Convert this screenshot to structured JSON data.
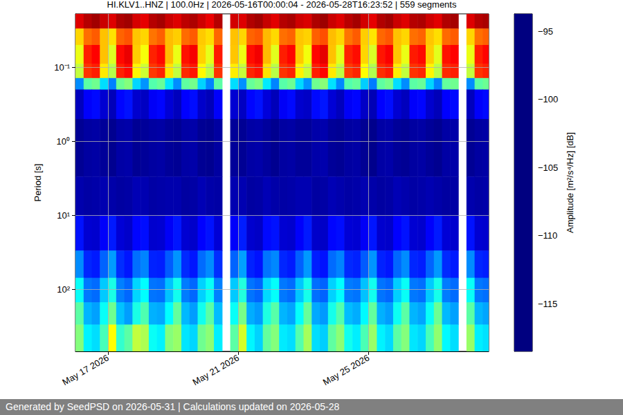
{
  "chart_data": {
    "type": "heatmap",
    "title": "HI.KLV1..HNZ | 100.0Hz | 2026-05-16T00:00:04 - 2026-05-28T16:23:52 | 559 segments",
    "y_label": "Period [s]",
    "colorbar_label": "Amplitude [m²/s⁴/Hz] [dB]",
    "footer": "Generated by SeedPSD on 2026-05-31 | Calculations updated on 2026-05-28",
    "log": "y",
    "grid": true,
    "xlim": [
      "2026-05-16T00:00:04",
      "2026-05-28T16:23:52"
    ],
    "xticks": [
      {
        "value": "2026-05-17T00:00:00",
        "label": "May 17 2026"
      },
      {
        "value": "2026-05-21T00:00:00",
        "label": "May 21 2026"
      },
      {
        "value": "2026-05-25T00:00:00",
        "label": "May 25 2026"
      }
    ],
    "ylim": [
      0.019,
      690
    ],
    "yticks": [
      {
        "value": 0.1,
        "label": "10⁻¹"
      },
      {
        "value": 1,
        "label": "10⁰"
      },
      {
        "value": 10,
        "label": "10¹"
      },
      {
        "value": 100,
        "label": "10²"
      }
    ],
    "colorbar_range": [
      -118.5,
      -93.7
    ],
    "colorbar_ticks": [
      {
        "value": -95,
        "label": "−95"
      },
      {
        "value": -100,
        "label": "−100"
      },
      {
        "value": -105,
        "label": "−105"
      },
      {
        "value": -110,
        "label": "−110"
      },
      {
        "value": -115,
        "label": "−115"
      }
    ],
    "x_edges": [
      "2026-05-16T00:00",
      "2026-05-16T06:00",
      "2026-05-16T12:00",
      "2026-05-16T18:00",
      "2026-05-17T00:00",
      "2026-05-17T06:00",
      "2026-05-17T12:00",
      "2026-05-17T18:00",
      "2026-05-18T00:00",
      "2026-05-18T06:00",
      "2026-05-18T12:00",
      "2026-05-18T18:00",
      "2026-05-19T00:00",
      "2026-05-19T06:00",
      "2026-05-19T12:00",
      "2026-05-19T18:00",
      "2026-05-20T00:00",
      "2026-05-20T06:00",
      "2026-05-20T12:00",
      "2026-05-20T18:00",
      "2026-05-21T00:00",
      "2026-05-21T06:00",
      "2026-05-21T12:00",
      "2026-05-21T18:00",
      "2026-05-22T00:00",
      "2026-05-22T06:00",
      "2026-05-22T12:00",
      "2026-05-22T18:00",
      "2026-05-23T00:00",
      "2026-05-23T06:00",
      "2026-05-23T12:00",
      "2026-05-23T18:00",
      "2026-05-24T00:00",
      "2026-05-24T06:00",
      "2026-05-24T12:00",
      "2026-05-24T18:00",
      "2026-05-25T00:00",
      "2026-05-25T06:00",
      "2026-05-25T12:00",
      "2026-05-25T18:00",
      "2026-05-26T00:00",
      "2026-05-26T06:00",
      "2026-05-26T12:00",
      "2026-05-26T18:00",
      "2026-05-27T00:00",
      "2026-05-27T06:00",
      "2026-05-27T12:00",
      "2026-05-27T18:00",
      "2026-05-28T00:00",
      "2026-05-28T06:00",
      "2026-05-28T12:00",
      "2026-05-28T18:00"
    ],
    "y_edges": [
      0.019,
      0.03,
      0.05,
      0.09,
      0.14,
      0.2,
      0.5,
      3,
      10,
      30,
      70,
      150,
      300,
      690
    ],
    "cells": [
      [
        -96,
        -95,
        -94.5,
        -95.5,
        -96,
        -94.8,
        -94.5,
        -95.8,
        -96.2,
        -95,
        -94.6,
        -95.5,
        -96,
        -95.2,
        -94.8,
        -95.6,
        -96.3,
        -95,
        null,
        -95.7,
        -96,
        -94.9,
        -94.5,
        -95.4,
        -96.1,
        -95,
        -94.7,
        -95.6,
        -95.9,
        -94.8,
        -94.4,
        -95.5,
        -96,
        -95.1,
        -94.6,
        -95.7,
        -96.2,
        -94.9,
        -94.5,
        -95.5,
        -96,
        -95,
        -94.8,
        -95.6,
        -96.1,
        -94.9,
        -94.6,
        null,
        -96,
        -95,
        -94.7
      ],
      [
        -102,
        -99.5,
        -99,
        -101.5,
        -102.3,
        -99.2,
        -98.8,
        -101.6,
        -102,
        -99.6,
        -99.1,
        -101.4,
        -101.8,
        -99.4,
        -99,
        -101.7,
        -102.2,
        -99.3,
        null,
        -101.5,
        -102,
        -99.2,
        -98.9,
        -101.3,
        -102.1,
        -99.5,
        -99.2,
        -101.6,
        -101.9,
        -99.1,
        -98.7,
        -101.4,
        -102,
        -99.6,
        -99,
        -101.8,
        -102.4,
        -99.3,
        -98.9,
        -101.5,
        -102,
        -99.5,
        -99.2,
        -101.6,
        -102.2,
        -99.4,
        -99,
        null,
        -102,
        -99.5,
        -99.1
      ],
      [
        -103.5,
        -97.5,
        -96.8,
        -101.5,
        -103.8,
        -97,
        -96.3,
        -101.8,
        -103.2,
        -97.6,
        -97,
        -101.4,
        -103.5,
        -97.2,
        -96.6,
        -101.9,
        -103.6,
        -97.4,
        null,
        -101.6,
        -103.4,
        -97.1,
        -96.5,
        -101.3,
        -103.7,
        -97.5,
        -96.9,
        -101.7,
        -103.3,
        -96.9,
        -96.2,
        -101.5,
        -103.6,
        -97.6,
        -97.1,
        -102,
        -103.9,
        -97.3,
        -96.7,
        -101.6,
        -103.5,
        -97.4,
        -97,
        -101.8,
        -103.7,
        -97.2,
        -96.8,
        null,
        -103.5,
        -97.5,
        -96.9
      ],
      [
        -104.5,
        -98,
        -97.5,
        -102.5,
        -104.8,
        -97.6,
        -97,
        -102.8,
        -104.2,
        -98.1,
        -97.6,
        -102.4,
        -104.5,
        -97.8,
        -97.3,
        -102.9,
        -104.6,
        -98,
        null,
        -102.6,
        -104.4,
        -97.7,
        -97.2,
        -102.3,
        -104.7,
        -98,
        -97.6,
        -102.7,
        -104.3,
        -97.5,
        -96.9,
        -102.5,
        -104.6,
        -98.2,
        -97.7,
        -103,
        -104.9,
        -97.9,
        -97.4,
        -102.6,
        -104.5,
        -98,
        -97.7,
        -102.8,
        -104.7,
        -97.8,
        -97.5,
        null,
        -104.5,
        -98,
        -97.6
      ],
      [
        -112,
        -107,
        -106.5,
        -110,
        -112.3,
        -106.6,
        -106,
        -110.2,
        -111.8,
        -107.2,
        -106.7,
        -109.8,
        -112,
        -106.9,
        -106.4,
        -110.3,
        -112.2,
        -107,
        null,
        -110,
        -111.9,
        -106.7,
        -106.2,
        -109.7,
        -112.2,
        -107.1,
        -106.6,
        -110.1,
        -111.8,
        -106.5,
        -105.9,
        -109.9,
        -112.1,
        -107.2,
        -106.8,
        -110.4,
        -112.4,
        -106.9,
        -106.4,
        -110,
        -112,
        -107,
        -106.7,
        -110.2,
        -112.2,
        -106.8,
        -106.5,
        null,
        -112,
        -107,
        -106.6
      ],
      [
        -117,
        -115.5,
        -115.2,
        -116.5,
        -117.1,
        -115.3,
        -115,
        -116.6,
        -116.9,
        -115.6,
        -115.3,
        -116.4,
        -117,
        -115.4,
        -115.1,
        -116.7,
        -117.1,
        -115.5,
        null,
        -116.5,
        -116.9,
        -115.3,
        -115,
        -116.3,
        -117.1,
        -115.6,
        -115.2,
        -116.6,
        -116.8,
        -115.2,
        -114.9,
        -116.4,
        -117,
        -115.6,
        -115.3,
        -116.8,
        -117.2,
        -115.4,
        -115.1,
        -116.5,
        -117,
        -115.5,
        -115.3,
        -116.6,
        -117.1,
        -115.4,
        -115.2,
        null,
        -117,
        -115.5,
        -115.2
      ],
      [
        -118,
        -117.7,
        -117.6,
        -117.9,
        -118.1,
        -117.6,
        -117.5,
        -118,
        -117.9,
        -117.7,
        -117.6,
        -117.9,
        -118,
        -117.6,
        -117.5,
        -118,
        -118.1,
        -117.7,
        null,
        -117.9,
        -118,
        -117.6,
        -117.5,
        -117.8,
        -118.1,
        -117.7,
        -117.6,
        -117.9,
        -117.9,
        -117.5,
        -117.4,
        -117.9,
        -118,
        -117.7,
        -117.6,
        -118,
        -118.2,
        -117.6,
        -117.5,
        -117.9,
        -118,
        -117.7,
        -117.6,
        -117.9,
        -118.1,
        -117.6,
        -117.5,
        null,
        -118,
        -117.7,
        -117.6
      ],
      [
        -117.4,
        -117.6,
        -117.5,
        -117.3,
        -117.5,
        -117.7,
        -117.6,
        -117.2,
        -117.3,
        -117.6,
        -117.5,
        -117.4,
        -117.4,
        -117.7,
        -117.6,
        -117.2,
        -117.5,
        -117.6,
        null,
        -117.3,
        -117.3,
        -117.7,
        -117.6,
        -117.2,
        -117.5,
        -117.6,
        -117.5,
        -117.3,
        -117.3,
        -117.7,
        -117.6,
        -117.2,
        -117.4,
        -117.6,
        -117.5,
        -117.3,
        -117.5,
        -117.7,
        -117.6,
        -117.2,
        -117.4,
        -117.6,
        -117.5,
        -117.3,
        -117.5,
        -117.7,
        -117.6,
        null,
        -117.4,
        -117.6,
        -117.5
      ],
      [
        -115,
        -116.5,
        -116.6,
        -115.5,
        -114.8,
        -116.4,
        -116.7,
        -115.3,
        -115.1,
        -116.6,
        -116.5,
        -115.6,
        -114.9,
        -116.5,
        -116.7,
        -115.4,
        -115,
        -116.4,
        null,
        -115.5,
        -114.7,
        -116.6,
        -116.8,
        -115.2,
        -115,
        -116.5,
        -116.6,
        -115.5,
        -114.8,
        -116.7,
        -116.8,
        -115.3,
        -115.1,
        -116.4,
        -116.5,
        -115.6,
        -114.9,
        -116.6,
        -116.7,
        -115.4,
        -115,
        -116.5,
        -116.6,
        -115.5,
        -114.8,
        -116.4,
        -116.6,
        null,
        -115,
        -116.5,
        -116.6
      ],
      [
        -112,
        -114.5,
        -114.8,
        -113,
        -111.6,
        -114.3,
        -114.9,
        -112.7,
        -112.2,
        -114.6,
        -114.7,
        -113.2,
        -111.8,
        -114.4,
        -114.9,
        -112.8,
        -112,
        -114.3,
        null,
        -113,
        -111.5,
        -114.6,
        -115,
        -112.6,
        -112.1,
        -114.5,
        -114.8,
        -113.1,
        -111.7,
        -114.7,
        -115,
        -112.8,
        -112.2,
        -114.4,
        -114.6,
        -113.2,
        -111.8,
        -114.6,
        -114.9,
        -112.9,
        -112,
        -114.5,
        -114.7,
        -113,
        -111.7,
        -114.4,
        -114.8,
        null,
        -112,
        -114.5,
        -114.7
      ],
      [
        -109,
        -112.5,
        -112.8,
        -110.5,
        -108.6,
        -112.3,
        -112.9,
        -110.2,
        -109.2,
        -112.6,
        -112.7,
        -110.7,
        -108.8,
        -112.4,
        -112.9,
        -110.3,
        -109,
        -112.3,
        null,
        -110.5,
        -108.4,
        -112.6,
        -113,
        -110.1,
        -109.1,
        -112.5,
        -112.8,
        -110.6,
        -108.7,
        -112.7,
        -113,
        -110.3,
        -109.2,
        -112.4,
        -112.6,
        -110.7,
        -108.8,
        -112.6,
        -112.9,
        -110.4,
        -109,
        -112.5,
        -112.7,
        -110.5,
        -108.7,
        -112.4,
        -112.8,
        null,
        -109,
        -112.5,
        -112.7
      ],
      [
        -107,
        -111,
        -111.5,
        -109,
        -106.5,
        -110.7,
        -111.6,
        -108.6,
        -107.3,
        -111.1,
        -111.3,
        -109.2,
        -106.8,
        -110.9,
        -111.6,
        -108.8,
        -107,
        -110.8,
        null,
        -109,
        -106.3,
        -111.2,
        -111.7,
        -108.5,
        -107.1,
        -111,
        -111.4,
        -109.1,
        -106.7,
        -111.3,
        -111.7,
        -108.7,
        -107.2,
        -110.8,
        -111.2,
        -109.3,
        -106.8,
        -111.1,
        -111.6,
        -108.9,
        -107,
        -111,
        -111.4,
        -109,
        -106.6,
        -110.9,
        -111.5,
        null,
        -107,
        -111,
        -111.4
      ],
      [
        -106,
        -109.5,
        -110,
        -107.5,
        -103,
        -108,
        -107,
        -104.5,
        -105,
        -109,
        -109.5,
        -106,
        -105.5,
        -109.8,
        -110.2,
        -106.5,
        -105.8,
        -109.6,
        null,
        -107,
        -104,
        -109.4,
        -110.3,
        -106.8,
        -106,
        -109.7,
        -110,
        -107.2,
        -105.2,
        -110,
        -110.4,
        -106.9,
        -105.8,
        -108.8,
        -109.6,
        -107.4,
        -105.5,
        -109.5,
        -110.1,
        -107,
        -106,
        -109.8,
        -110.2,
        -107.5,
        -105.7,
        -109.3,
        -110,
        null,
        -105.5,
        -109.6,
        -109.9
      ]
    ]
  }
}
